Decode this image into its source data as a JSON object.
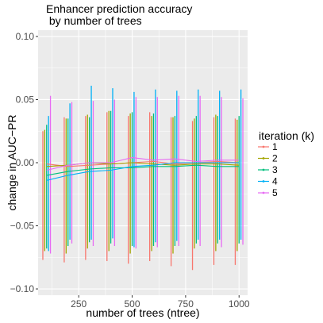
{
  "chart_data": {
    "type": "line",
    "title_lines": [
      "Enhancer prediction accuracy",
      " by number of trees"
    ],
    "xlabel": "number of trees (ntree)",
    "ylabel": "change in AUC−PR",
    "x": [
      100,
      200,
      300,
      400,
      500,
      600,
      700,
      800,
      900,
      1000
    ],
    "xlim": [
      60,
      1040
    ],
    "ylim": [
      -0.105,
      0.105
    ],
    "x_ticks": [
      250,
      500,
      750,
      1000
    ],
    "x_tick_labels": [
      "250",
      "500",
      "750",
      "1000"
    ],
    "y_ticks": [
      -0.1,
      -0.05,
      0.0,
      0.05,
      0.1
    ],
    "y_tick_labels": [
      "−0.10",
      "−0.05",
      "0.00",
      "0.05",
      "0.10"
    ],
    "grid": true,
    "legend": {
      "title": "iteration (k)",
      "position": "right",
      "labels": [
        "1",
        "2",
        "3",
        "4",
        "5"
      ]
    },
    "series": [
      {
        "name": "1",
        "color": "#F8766D",
        "values": [
          -0.001,
          -0.003,
          -0.002,
          -0.001,
          0.0,
          0.001,
          -0.001,
          0.0,
          0.001,
          0.0
        ],
        "error_low": [
          -0.077,
          -0.079,
          -0.077,
          -0.078,
          -0.08,
          -0.078,
          -0.082,
          -0.085,
          -0.081,
          -0.081
        ],
        "error_high": [
          0.025,
          0.036,
          0.037,
          0.04,
          0.037,
          0.04,
          0.036,
          0.033,
          0.036,
          0.035
        ]
      },
      {
        "name": "2",
        "color": "#A3A500",
        "values": [
          -0.003,
          -0.002,
          0.0,
          -0.001,
          0.0,
          -0.001,
          -0.002,
          -0.001,
          -0.001,
          -0.002
        ],
        "error_low": [
          -0.07,
          -0.072,
          -0.068,
          -0.07,
          -0.072,
          -0.07,
          -0.072,
          -0.068,
          -0.07,
          -0.07
        ],
        "error_high": [
          0.026,
          0.035,
          0.038,
          0.041,
          0.039,
          0.037,
          0.036,
          0.035,
          0.038,
          0.034
        ]
      },
      {
        "name": "3",
        "color": "#00BF7D",
        "values": [
          -0.01,
          -0.007,
          -0.005,
          -0.004,
          -0.004,
          -0.003,
          -0.003,
          -0.002,
          -0.003,
          -0.003
        ],
        "error_low": [
          -0.068,
          -0.066,
          -0.063,
          -0.064,
          -0.066,
          -0.066,
          -0.066,
          -0.064,
          -0.064,
          -0.064
        ],
        "error_high": [
          0.03,
          0.035,
          0.036,
          0.041,
          0.04,
          0.039,
          0.037,
          0.037,
          0.037,
          0.037
        ]
      },
      {
        "name": "4",
        "color": "#00B0F6",
        "values": [
          -0.014,
          -0.01,
          -0.007,
          -0.006,
          -0.003,
          -0.002,
          0.0,
          0.0,
          0.0,
          0.0
        ],
        "error_low": [
          -0.07,
          -0.061,
          -0.061,
          -0.06,
          -0.067,
          -0.063,
          -0.062,
          -0.061,
          -0.061,
          -0.061
        ],
        "error_high": [
          0.037,
          0.047,
          0.061,
          0.059,
          0.056,
          0.058,
          0.057,
          0.058,
          0.057,
          0.058
        ]
      },
      {
        "name": "5",
        "color": "#E76BF3",
        "values": [
          -0.006,
          -0.002,
          0.0,
          0.0,
          0.004,
          0.002,
          0.003,
          0.001,
          0.002,
          0.002
        ],
        "error_low": [
          -0.072,
          -0.064,
          -0.066,
          -0.066,
          -0.068,
          -0.067,
          -0.066,
          -0.066,
          -0.067,
          -0.065
        ],
        "error_high": [
          0.053,
          0.048,
          0.049,
          0.05,
          0.052,
          0.052,
          0.053,
          0.053,
          0.052,
          0.051
        ]
      }
    ]
  }
}
